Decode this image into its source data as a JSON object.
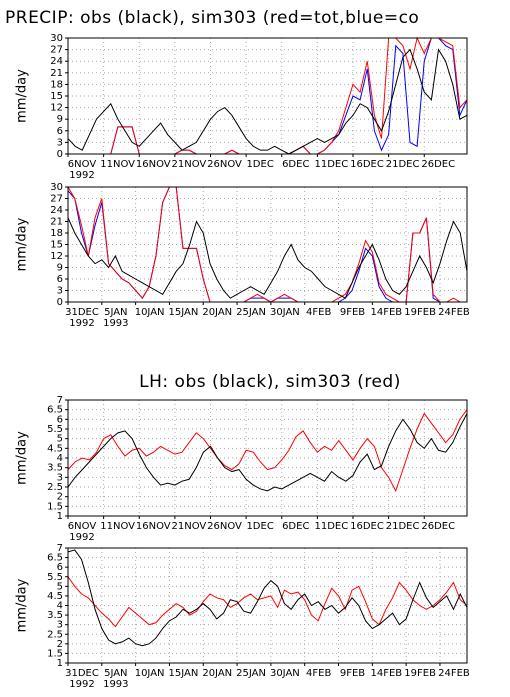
{
  "chart_data": [
    {
      "type": "line",
      "title": "PRECIP: obs (black), sim303 (red=tot,blue=co",
      "ylabel": "mm/day",
      "grid": true,
      "xlim": [
        0,
        56
      ],
      "ylim": [
        0,
        30
      ],
      "yticks": [
        0,
        3,
        6,
        9,
        12,
        15,
        18,
        21,
        24,
        27,
        30
      ],
      "xticks": [
        {
          "value": 0,
          "label": "6NOV"
        },
        {
          "value": 5,
          "label": "11NOV"
        },
        {
          "value": 10,
          "label": "16NOV"
        },
        {
          "value": 15,
          "label": "21NOV"
        },
        {
          "value": 20,
          "label": "26NOV"
        },
        {
          "value": 25,
          "label": "1DEC"
        },
        {
          "value": 30,
          "label": "6DEC"
        },
        {
          "value": 35,
          "label": "11DEC"
        },
        {
          "value": 40,
          "label": "16DEC"
        },
        {
          "value": 45,
          "label": "21DEC"
        },
        {
          "value": 50,
          "label": "26DEC"
        }
      ],
      "year_labels": [
        {
          "value": 0,
          "label": "1992"
        }
      ],
      "series": [
        {
          "color": "#0000ff",
          "values": [
            0,
            0,
            0,
            0,
            0,
            0,
            0,
            7,
            7,
            7,
            0,
            0,
            0,
            0,
            0,
            0,
            1,
            1,
            0,
            0,
            0,
            0,
            0,
            1,
            0,
            0,
            0,
            0,
            0,
            0,
            0,
            0,
            1,
            2,
            0,
            0,
            1,
            3,
            5,
            10,
            15,
            14,
            22,
            6,
            1,
            5,
            28,
            26,
            3,
            2,
            24,
            30,
            30,
            28,
            27,
            10,
            14
          ]
        },
        {
          "color": "#ff0000",
          "values": [
            0,
            0,
            0,
            0,
            0,
            0,
            0,
            7,
            7,
            7,
            0,
            0,
            0,
            0,
            0,
            0,
            1,
            1,
            0,
            0,
            0,
            0,
            0,
            1,
            0,
            0,
            0,
            0,
            0,
            0,
            0,
            0,
            1,
            2,
            0,
            0,
            1,
            3,
            6,
            12,
            18,
            16,
            24,
            10,
            4,
            30,
            30,
            28,
            22,
            30,
            26,
            30,
            30,
            29,
            28,
            12,
            14
          ]
        },
        {
          "color": "#000000",
          "values": [
            4,
            2,
            1,
            5,
            9,
            11,
            13,
            9,
            6,
            3,
            2,
            4,
            6,
            8,
            5,
            3,
            1,
            2,
            3,
            6,
            9,
            11,
            12,
            10,
            7,
            4,
            2,
            1,
            1,
            2,
            1,
            0,
            1,
            2,
            3,
            4,
            3,
            4,
            5,
            8,
            10,
            13,
            12,
            9,
            6,
            11,
            18,
            25,
            27,
            22,
            16,
            14,
            27,
            24,
            18,
            9,
            10
          ]
        }
      ]
    },
    {
      "type": "line",
      "ylabel": "mm/day",
      "grid": true,
      "xlim": [
        0,
        59
      ],
      "ylim": [
        0,
        30
      ],
      "yticks": [
        0,
        3,
        6,
        9,
        12,
        15,
        18,
        21,
        24,
        27,
        30
      ],
      "xticks": [
        {
          "value": 0,
          "label": "31DEC"
        },
        {
          "value": 5,
          "label": "5JAN"
        },
        {
          "value": 10,
          "label": "10JAN"
        },
        {
          "value": 15,
          "label": "15JAN"
        },
        {
          "value": 20,
          "label": "20JAN"
        },
        {
          "value": 25,
          "label": "25JAN"
        },
        {
          "value": 30,
          "label": "30JAN"
        },
        {
          "value": 35,
          "label": "4FEB"
        },
        {
          "value": 40,
          "label": "9FEB"
        },
        {
          "value": 45,
          "label": "14FEB"
        },
        {
          "value": 50,
          "label": "19FEB"
        },
        {
          "value": 55,
          "label": "24FEB"
        }
      ],
      "year_labels": [
        {
          "value": 0,
          "label": "1992"
        },
        {
          "value": 5,
          "label": "1993"
        }
      ],
      "series": [
        {
          "color": "#0000ff",
          "values": [
            29,
            27,
            18,
            12,
            20,
            26,
            10,
            8,
            6,
            5,
            3,
            1,
            4,
            12,
            26,
            30,
            30,
            14,
            14,
            14,
            6,
            0,
            0,
            0,
            0,
            0,
            0,
            1,
            1,
            1,
            0,
            1,
            1,
            1,
            0,
            0,
            0,
            0,
            0,
            0,
            0,
            1,
            3,
            8,
            14,
            12,
            4,
            1,
            0,
            0,
            0,
            18,
            18,
            22,
            1,
            0,
            0,
            0,
            0,
            0
          ]
        },
        {
          "color": "#ff0000",
          "values": [
            30,
            27,
            20,
            12,
            22,
            27,
            10,
            8,
            6,
            5,
            3,
            1,
            4,
            12,
            26,
            30,
            30,
            14,
            14,
            14,
            6,
            0,
            0,
            0,
            0,
            0,
            0,
            1,
            2,
            1,
            0,
            1,
            2,
            1,
            0,
            0,
            0,
            0,
            0,
            0,
            1,
            2,
            5,
            10,
            16,
            13,
            5,
            2,
            1,
            0,
            0,
            18,
            18,
            22,
            2,
            0,
            0,
            1,
            0,
            0
          ]
        },
        {
          "color": "#000000",
          "values": [
            22,
            18,
            15,
            12,
            10,
            11,
            9,
            12,
            8,
            7,
            6,
            5,
            4,
            3,
            2,
            5,
            8,
            10,
            15,
            21,
            18,
            10,
            6,
            3,
            1,
            2,
            3,
            4,
            3,
            2,
            5,
            8,
            12,
            15,
            11,
            9,
            8,
            6,
            4,
            3,
            2,
            1,
            5,
            9,
            12,
            15,
            11,
            6,
            3,
            2,
            4,
            8,
            12,
            9,
            5,
            10,
            16,
            21,
            18,
            8
          ]
        }
      ]
    },
    {
      "type": "line",
      "title": "LH: obs (black), sim303 (red)",
      "ylabel": "mm/day",
      "grid": true,
      "xlim": [
        0,
        56
      ],
      "ylim": [
        1,
        7
      ],
      "yticks": [
        1,
        1.5,
        2,
        2.5,
        3,
        3.5,
        4,
        4.5,
        5,
        5.5,
        6,
        6.5,
        7
      ],
      "xticks": [
        {
          "value": 0,
          "label": "6NOV"
        },
        {
          "value": 5,
          "label": "11NOV"
        },
        {
          "value": 10,
          "label": "16NOV"
        },
        {
          "value": 15,
          "label": "21NOV"
        },
        {
          "value": 20,
          "label": "26NOV"
        },
        {
          "value": 25,
          "label": "1DEC"
        },
        {
          "value": 30,
          "label": "6DEC"
        },
        {
          "value": 35,
          "label": "11DEC"
        },
        {
          "value": 40,
          "label": "16DEC"
        },
        {
          "value": 45,
          "label": "21DEC"
        },
        {
          "value": 50,
          "label": "26DEC"
        }
      ],
      "year_labels": [
        {
          "value": 0,
          "label": "1992"
        }
      ],
      "series": [
        {
          "color": "#ff0000",
          "values": [
            3.4,
            3.8,
            4.0,
            3.9,
            4.3,
            5.0,
            5.2,
            4.6,
            4.1,
            4.4,
            4.5,
            4.1,
            4.3,
            4.6,
            4.4,
            4.2,
            4.3,
            4.8,
            5.3,
            5.0,
            4.5,
            4.0,
            3.6,
            3.4,
            3.7,
            4.4,
            4.3,
            3.8,
            3.4,
            3.5,
            3.9,
            4.4,
            5.1,
            5.4,
            4.8,
            4.3,
            4.6,
            4.4,
            4.9,
            4.4,
            3.9,
            4.5,
            5.0,
            4.6,
            3.5,
            3.0,
            2.3,
            3.4,
            4.5,
            5.5,
            6.3,
            5.8,
            5.3,
            4.8,
            5.2,
            6.0,
            6.5
          ]
        },
        {
          "color": "#000000",
          "values": [
            2.5,
            3.0,
            3.4,
            3.8,
            4.2,
            4.6,
            5.0,
            5.3,
            5.4,
            5.0,
            4.2,
            3.5,
            3.0,
            2.6,
            2.7,
            2.6,
            2.8,
            2.9,
            3.5,
            4.3,
            4.6,
            4.0,
            3.5,
            3.3,
            3.4,
            2.9,
            2.6,
            2.4,
            2.3,
            2.5,
            2.4,
            2.6,
            2.8,
            3.0,
            3.2,
            3.0,
            2.8,
            3.3,
            3.0,
            2.8,
            3.1,
            3.8,
            4.2,
            3.4,
            3.6,
            4.6,
            5.4,
            6.0,
            5.5,
            4.8,
            4.5,
            5.0,
            4.4,
            4.3,
            4.8,
            5.6,
            6.3
          ]
        }
      ]
    },
    {
      "type": "line",
      "ylabel": "mm/day",
      "grid": true,
      "xlim": [
        0,
        59
      ],
      "ylim": [
        1,
        7
      ],
      "yticks": [
        1,
        1.5,
        2,
        2.5,
        3,
        3.5,
        4,
        4.5,
        5,
        5.5,
        6,
        6.5,
        7
      ],
      "xticks": [
        {
          "value": 0,
          "label": "31DEC"
        },
        {
          "value": 5,
          "label": "5JAN"
        },
        {
          "value": 10,
          "label": "10JAN"
        },
        {
          "value": 15,
          "label": "15JAN"
        },
        {
          "value": 20,
          "label": "20JAN"
        },
        {
          "value": 25,
          "label": "25JAN"
        },
        {
          "value": 30,
          "label": "30JAN"
        },
        {
          "value": 35,
          "label": "4FEB"
        },
        {
          "value": 40,
          "label": "9FEB"
        },
        {
          "value": 45,
          "label": "14FEB"
        },
        {
          "value": 50,
          "label": "19FEB"
        },
        {
          "value": 55,
          "label": "24FEB"
        }
      ],
      "year_labels": [
        {
          "value": 0,
          "label": "1992"
        },
        {
          "value": 5,
          "label": "1993"
        }
      ],
      "series": [
        {
          "color": "#ff0000",
          "values": [
            5.5,
            5.0,
            4.6,
            4.4,
            4.0,
            3.6,
            3.3,
            2.9,
            3.4,
            3.9,
            3.6,
            3.3,
            3.0,
            3.1,
            3.5,
            3.8,
            4.1,
            3.9,
            3.5,
            3.7,
            4.2,
            4.6,
            4.4,
            4.3,
            3.9,
            4.1,
            4.4,
            4.6,
            4.3,
            4.4,
            4.5,
            3.9,
            4.8,
            4.6,
            4.7,
            4.3,
            3.5,
            3.2,
            4.1,
            4.9,
            4.5,
            3.8,
            4.8,
            5.0,
            4.2,
            3.3,
            3.0,
            3.8,
            4.4,
            5.2,
            4.8,
            4.3,
            4.0,
            3.8,
            4.0,
            4.3,
            4.7,
            5.2,
            4.3,
            4.0
          ]
        },
        {
          "color": "#000000",
          "values": [
            6.8,
            6.9,
            6.4,
            5.2,
            3.8,
            2.8,
            2.2,
            2.0,
            2.1,
            2.3,
            2.0,
            1.9,
            2.0,
            2.3,
            2.8,
            3.2,
            3.4,
            3.8,
            3.6,
            3.8,
            4.1,
            3.8,
            3.3,
            3.6,
            4.3,
            4.2,
            3.7,
            3.6,
            4.2,
            4.9,
            5.3,
            5.0,
            4.1,
            3.8,
            4.3,
            4.6,
            4.0,
            4.2,
            3.8,
            4.0,
            3.6,
            3.9,
            4.4,
            4.0,
            3.2,
            2.8,
            3.0,
            3.3,
            3.6,
            3.0,
            3.3,
            4.3,
            5.2,
            4.4,
            3.9,
            4.2,
            4.5,
            3.8,
            4.6,
            3.9
          ]
        }
      ]
    }
  ]
}
